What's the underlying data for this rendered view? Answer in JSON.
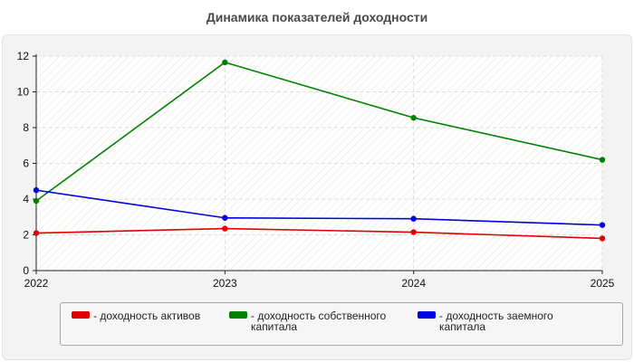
{
  "chart_data": {
    "type": "line",
    "title": "Динамика показателей доходности",
    "x": [
      "2022",
      "2023",
      "2024",
      "2025"
    ],
    "ylim": [
      0,
      12
    ],
    "yticks": [
      0,
      2,
      4,
      6,
      8,
      10,
      12
    ],
    "grid": true,
    "legend_position": "bottom",
    "series": [
      {
        "name": "- доходность активов",
        "color": "#e00000",
        "values": [
          2.1,
          2.35,
          2.15,
          1.8
        ]
      },
      {
        "name": "- доходность собственного капитала",
        "color": "#008000",
        "values": [
          3.9,
          11.65,
          8.55,
          6.2
        ]
      },
      {
        "name": "- доходность заемного капитала",
        "color": "#0000e0",
        "values": [
          4.5,
          2.95,
          2.9,
          2.55
        ]
      }
    ]
  }
}
